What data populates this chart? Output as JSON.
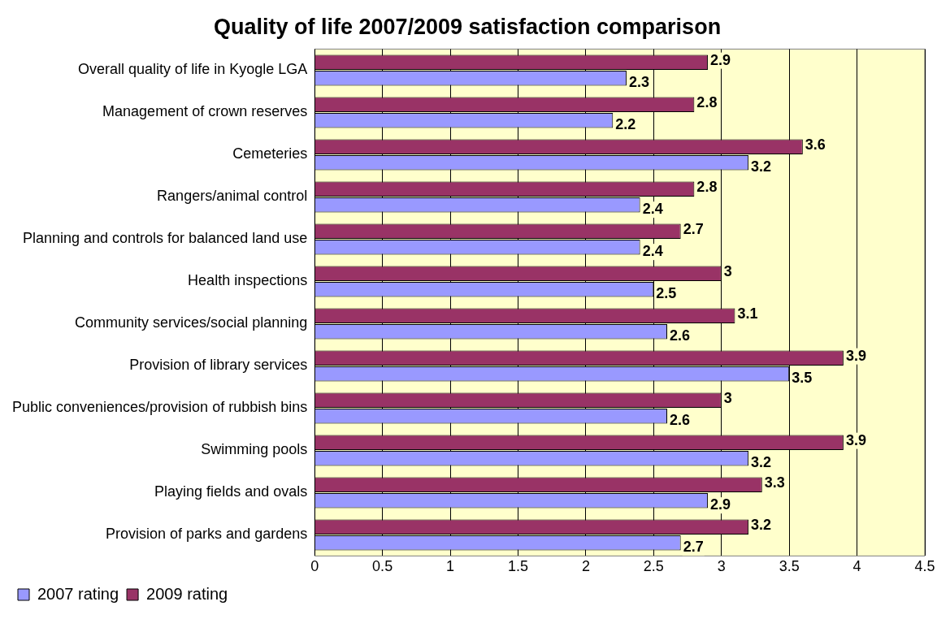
{
  "chart_data": {
    "type": "bar",
    "orientation": "horizontal",
    "title": "Quality of life 2007/2009 satisfaction comparison",
    "categories": [
      "Overall quality of life in Kyogle LGA",
      "Management of crown reserves",
      "Cemeteries",
      "Rangers/animal control",
      "Planning and controls for balanced land use",
      "Health inspections",
      "Community services/social planning",
      "Provision of library services",
      "Public conveniences/provision of rubbish bins",
      "Swimming pools",
      "Playing fields and ovals",
      "Provision of parks and gardens"
    ],
    "series": [
      {
        "name": "2007 rating",
        "color": "#9999ff",
        "values": [
          2.3,
          2.2,
          3.2,
          2.4,
          2.4,
          2.5,
          2.6,
          3.5,
          2.6,
          3.2,
          2.9,
          2.7
        ]
      },
      {
        "name": "2009 rating",
        "color": "#993366",
        "values": [
          2.9,
          2.8,
          3.6,
          2.8,
          2.7,
          3,
          3.1,
          3.9,
          3,
          3.9,
          3.3,
          3.2
        ]
      }
    ],
    "xlim": [
      0,
      4.5
    ],
    "xticks": [
      0,
      0.5,
      1,
      1.5,
      2,
      2.5,
      3,
      3.5,
      4,
      4.5
    ],
    "grid": "x",
    "legend": "bottom left",
    "data_labels": true
  }
}
